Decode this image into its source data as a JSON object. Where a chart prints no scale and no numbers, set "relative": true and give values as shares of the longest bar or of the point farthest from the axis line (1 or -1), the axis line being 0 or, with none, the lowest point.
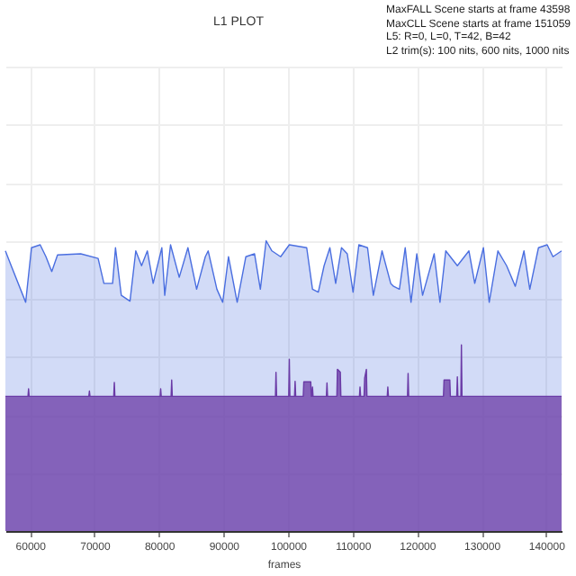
{
  "chart_data": {
    "type": "area",
    "title": "L1 PLOT",
    "xlabel": "frames",
    "annotations": [
      "MaxFALL Scene starts at frame 43598",
      "MaxCLL Scene starts at frame 151059",
      "L5: R=0, L=0, T=42, B=42",
      "L2 trim(s): 100 nits, 600 nits, 1000 nits"
    ],
    "relative": true,
    "xlim": [
      56200,
      142400
    ],
    "xticks": [
      60000,
      70000,
      80000,
      90000,
      100000,
      110000,
      120000,
      130000,
      140000
    ],
    "grid": true,
    "tick_labels": "x",
    "series": [
      {
        "color": "#4a6ee0",
        "x": [
          56200,
          57098,
          59343,
          60241,
          61588,
          62486,
          63384,
          64282,
          67874,
          70568,
          71466,
          72813,
          73262,
          74160,
          75507,
          76405,
          77303,
          78201,
          79099,
          80446,
          80895,
          81793,
          83140,
          84487,
          85834,
          87181,
          87630,
          88977,
          89875,
          90773,
          92120,
          93467,
          94814,
          95712,
          96610,
          97508,
          98855,
          100202,
          102896,
          103794,
          104692,
          105590,
          106488,
          107386,
          108284,
          109182,
          110080,
          110978,
          112325,
          113223,
          114570,
          115917,
          116366,
          117264,
          118162,
          119060,
          119958,
          120856,
          122652,
          123550,
          124448,
          126244,
          128040,
          128938,
          130285,
          131183,
          132530,
          133877,
          135224,
          136571,
          137469,
          138816,
          140163,
          141061,
          142400
        ],
        "values": [
          0.965,
          0.914,
          0.788,
          0.976,
          0.986,
          0.945,
          0.894,
          0.951,
          0.955,
          0.939,
          0.853,
          0.853,
          0.976,
          0.812,
          0.792,
          0.965,
          0.914,
          0.965,
          0.853,
          0.976,
          0.812,
          0.986,
          0.874,
          0.976,
          0.833,
          0.945,
          0.965,
          0.833,
          0.788,
          0.945,
          0.788,
          0.945,
          0.955,
          0.833,
          1.0,
          0.965,
          0.945,
          0.986,
          0.976,
          0.833,
          0.823,
          0.914,
          0.976,
          0.853,
          0.976,
          0.955,
          0.823,
          0.986,
          0.976,
          0.812,
          0.965,
          0.853,
          0.843,
          0.833,
          0.976,
          0.788,
          0.955,
          0.812,
          0.955,
          0.788,
          0.965,
          0.914,
          0.965,
          0.853,
          0.976,
          0.788,
          0.965,
          0.914,
          0.843,
          0.965,
          0.833,
          0.976,
          0.986,
          0.945,
          0.965
        ]
      },
      {
        "color": "#6a3aa6",
        "x": [
          56200,
          59700,
          59792,
          59880,
          69130,
          69221,
          69310,
          72990,
          73082,
          73170,
          80180,
          80266,
          80350,
          81880,
          81973,
          82060,
          98050,
          98137,
          98230,
          100110,
          100202,
          100290,
          101010,
          101100,
          101190,
          102360,
          102447,
          103525,
          103610,
          103700,
          103794,
          103880,
          105950,
          106039,
          106130,
          107570,
          107655,
          108104,
          108190,
          111070,
          111158,
          111250,
          111790,
          111876,
          112145,
          112230,
          115380,
          115468,
          115560,
          118520,
          118611,
          118700,
          124090,
          124179,
          125077,
          125160,
          126150,
          126244,
          126330,
          126790,
          126873,
          126960,
          142400
        ],
        "values": [
          0.464,
          0.464,
          0.49,
          0.464,
          0.464,
          0.482,
          0.464,
          0.464,
          0.512,
          0.464,
          0.464,
          0.49,
          0.464,
          0.464,
          0.52,
          0.464,
          0.464,
          0.547,
          0.464,
          0.464,
          0.592,
          0.464,
          0.464,
          0.516,
          0.464,
          0.464,
          0.514,
          0.514,
          0.464,
          0.464,
          0.496,
          0.464,
          0.464,
          0.51,
          0.464,
          0.464,
          0.557,
          0.547,
          0.464,
          0.464,
          0.496,
          0.464,
          0.464,
          0.527,
          0.557,
          0.464,
          0.464,
          0.496,
          0.464,
          0.464,
          0.543,
          0.464,
          0.464,
          0.52,
          0.52,
          0.464,
          0.464,
          0.531,
          0.464,
          0.464,
          0.641,
          0.464,
          0.464
        ]
      }
    ]
  }
}
